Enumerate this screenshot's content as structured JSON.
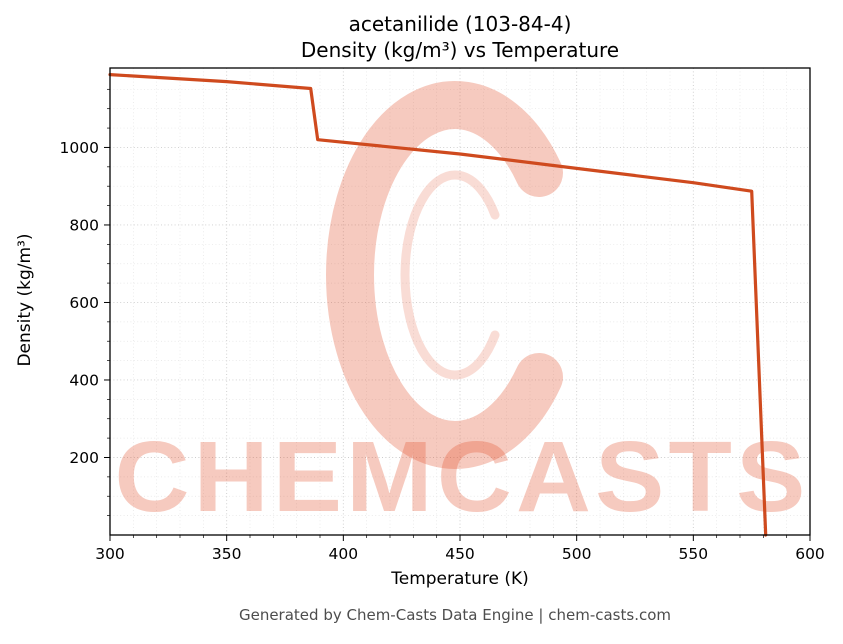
{
  "footer": {
    "text": "Generated by Chem-Casts Data Engine | chem-casts.com"
  },
  "watermark": {
    "text": "CHEMCASTS",
    "logo": "c-ring-logo",
    "color": "#e0512b"
  },
  "chart_data": {
    "type": "line",
    "title": "acetanilide (103-84-4)",
    "subtitle": "Density (kg/m³) vs Temperature",
    "xlabel": "Temperature (K)",
    "ylabel": "Density (kg/m³)",
    "xlim": [
      300,
      600
    ],
    "ylim": [
      0,
      1205
    ],
    "x_ticks": [
      300,
      350,
      400,
      450,
      500,
      550,
      600
    ],
    "y_ticks": [
      200,
      400,
      600,
      800,
      1000
    ],
    "x_minor_step": 10,
    "y_minor_step": 50,
    "grid": true,
    "legend": false,
    "line_color": "#cf4a1e",
    "line_width": 3.2,
    "series": [
      {
        "name": "density",
        "points": [
          [
            300,
            1188
          ],
          [
            350,
            1170
          ],
          [
            386,
            1152
          ],
          [
            389,
            1020
          ],
          [
            450,
            983
          ],
          [
            500,
            946
          ],
          [
            550,
            909
          ],
          [
            575,
            887
          ],
          [
            581,
            0
          ]
        ]
      }
    ],
    "annotations": {
      "melting_step_near_K": 387,
      "boiling_drop_near_K": 578
    }
  }
}
